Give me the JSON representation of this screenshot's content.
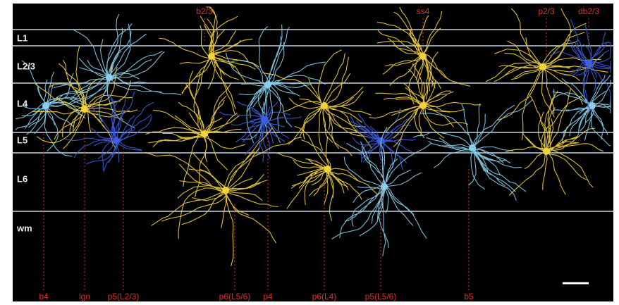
{
  "layers": [
    "L1",
    "L2/3",
    "L4",
    "L5",
    "L6",
    "wm"
  ],
  "top_labels": [
    "b2/3",
    "ss4",
    "p2/3",
    "db2/3"
  ],
  "bottom_labels": [
    "b4",
    "lgn",
    "p5(L2/3)",
    "p6(L5/6)",
    "p4",
    "p6(L4)",
    "p5(L5/6)",
    "b5"
  ]
}
